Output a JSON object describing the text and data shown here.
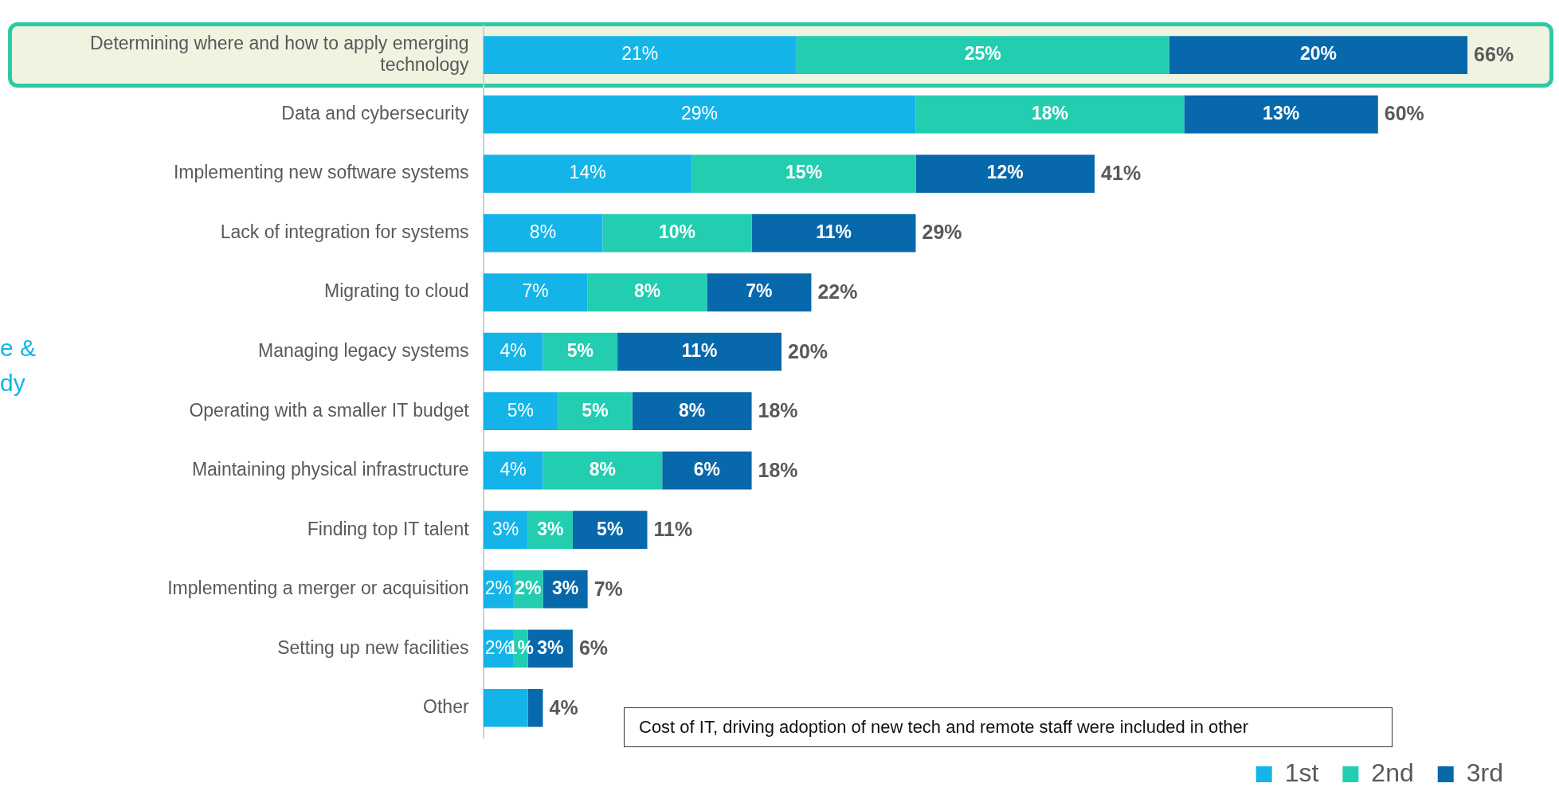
{
  "chart_data": {
    "type": "bar",
    "orientation": "horizontal",
    "stacked": true,
    "legend": "bottom right",
    "categories": [
      "Determining where and how to apply emerging technology",
      "Data and cybersecurity",
      "Implementing new software systems",
      "Lack of integration for systems",
      "Migrating to cloud",
      "Managing legacy systems",
      "Operating with a smaller IT budget",
      "Maintaining physical infrastructure",
      "Finding top IT talent",
      "Implementing a merger or acquisition",
      "Setting up new facilities",
      "Other"
    ],
    "series": [
      {
        "name": "1st",
        "color": "#14b4e8",
        "values": [
          21,
          29,
          14,
          8,
          7,
          4,
          5,
          4,
          3,
          2,
          2,
          3
        ],
        "value_labels": [
          "21%",
          "29%",
          "14%",
          "8%",
          "7%",
          "4%",
          "5%",
          "4%",
          "3%",
          "2%",
          "2%",
          null
        ]
      },
      {
        "name": "2nd",
        "color": "#22cdb0",
        "values": [
          25,
          18,
          15,
          10,
          8,
          5,
          5,
          8,
          3,
          2,
          1,
          null
        ],
        "value_labels": [
          "25%",
          "18%",
          "15%",
          "10%",
          "8%",
          "5%",
          "5%",
          "8%",
          "3%",
          "2%",
          "1%",
          null
        ]
      },
      {
        "name": "3rd",
        "color": "#0868ac",
        "values": [
          20,
          13,
          12,
          11,
          7,
          11,
          8,
          6,
          5,
          3,
          3,
          1
        ],
        "value_labels": [
          "20%",
          "13%",
          "12%",
          "11%",
          "7%",
          "11%",
          "8%",
          "6%",
          "5%",
          "3%",
          "3%",
          null
        ]
      }
    ],
    "totals": [
      "66%",
      "60%",
      "41%",
      "29%",
      "22%",
      "20%",
      "18%",
      "18%",
      "11%",
      "7%",
      "6%",
      "4%"
    ],
    "annotations": [
      "e &",
      "dy",
      "Cost of IT, driving adoption of new tech and remote staff were included in other"
    ]
  }
}
